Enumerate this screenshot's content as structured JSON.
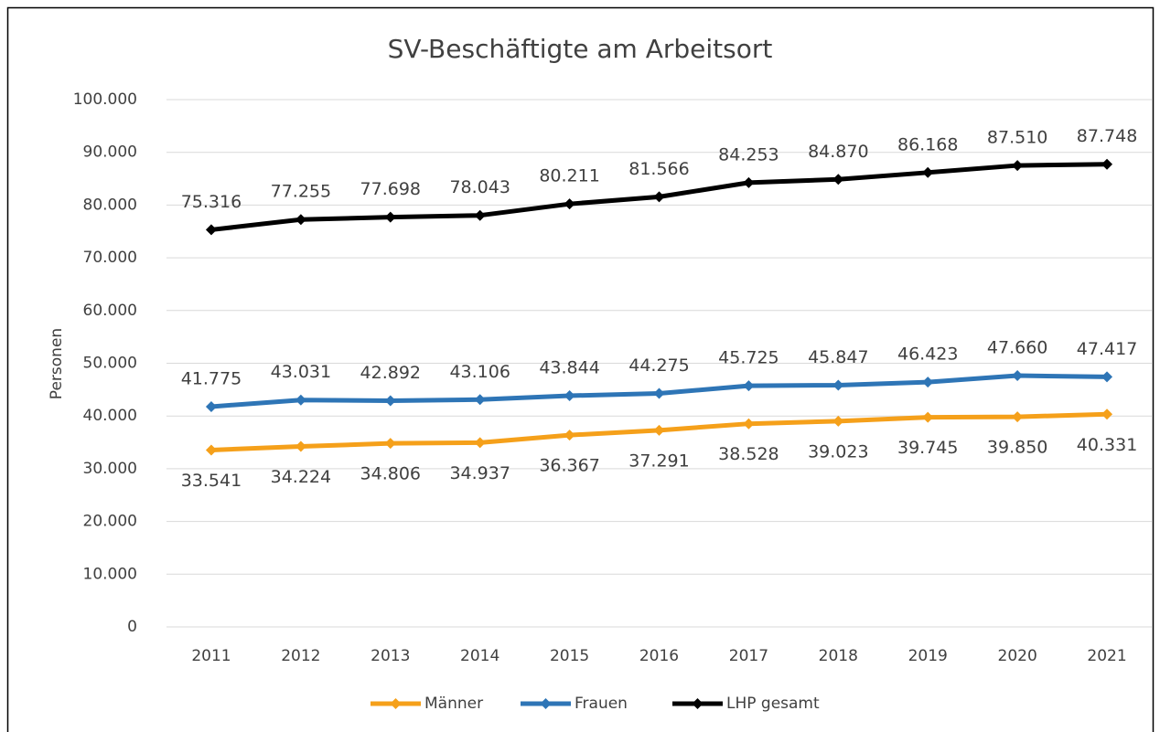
{
  "chart_data": {
    "type": "line",
    "title": "SV-Beschäftigte am Arbeitsort",
    "y_label": "Personen",
    "categories": [
      "2011",
      "2012",
      "2013",
      "2014",
      "2015",
      "2016",
      "2017",
      "2018",
      "2019",
      "2020",
      "2021"
    ],
    "series": [
      {
        "name": "Männer",
        "color": "#f5a01a",
        "values": [
          33541,
          34224,
          34806,
          34937,
          36367,
          37291,
          38528,
          39023,
          39745,
          39850,
          40331
        ],
        "value_labels": [
          "33.541",
          "34.224",
          "34.806",
          "34.937",
          "36.367",
          "37.291",
          "38.528",
          "39.023",
          "39.745",
          "39.850",
          "40.331"
        ]
      },
      {
        "name": "Frauen",
        "color": "#2e75b6",
        "values": [
          41775,
          43031,
          42892,
          43106,
          43844,
          44275,
          45725,
          45847,
          46423,
          47660,
          47417
        ],
        "value_labels": [
          "41.775",
          "43.031",
          "42.892",
          "43.106",
          "43.844",
          "44.275",
          "45.725",
          "45.847",
          "46.423",
          "47.660",
          "47.417"
        ]
      },
      {
        "name": "LHP gesamt",
        "color": "#000000",
        "values": [
          75316,
          77255,
          77698,
          78043,
          80211,
          81566,
          84253,
          84870,
          86168,
          87510,
          87748
        ],
        "value_labels": [
          "75.316",
          "77.255",
          "77.698",
          "78.043",
          "80.211",
          "81.566",
          "84.253",
          "84.870",
          "86.168",
          "87.510",
          "87.748"
        ]
      }
    ],
    "ylim": [
      0,
      100000
    ],
    "yticks": [
      0,
      {
        "value": 10000,
        "label": "10.000"
      },
      {
        "value": 20000,
        "label": "20.000"
      },
      {
        "value": 30000,
        "label": "30.000"
      },
      {
        "value": 40000,
        "label": "40.000"
      },
      {
        "value": 50000,
        "label": "50.000"
      },
      {
        "value": 60000,
        "label": "60.000"
      },
      {
        "value": 70000,
        "label": "70.000"
      },
      {
        "value": 80000,
        "label": "80.000"
      },
      {
        "value": 90000,
        "label": "90.000"
      },
      {
        "value": 100000,
        "label": "100.000"
      }
    ],
    "grid": true,
    "legend": "bottom"
  }
}
